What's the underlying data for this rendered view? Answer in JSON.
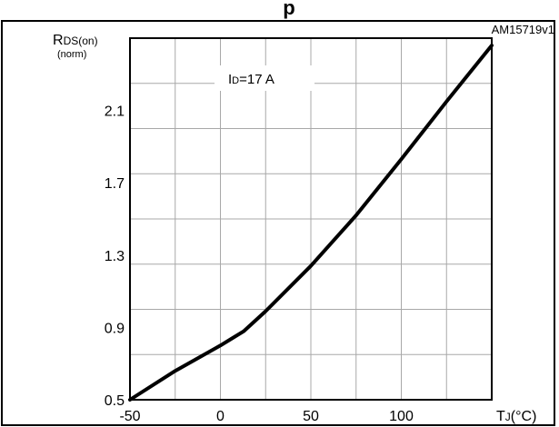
{
  "chart_data": {
    "type": "line",
    "title_partial": "p",
    "code": "AM15719v1",
    "annotation": "I",
    "annotation_sub": "D",
    "annotation_rest": "=17 A",
    "ylabel_main": "R",
    "ylabel_sub": "DS(on)",
    "ylabel_unit": "(norm)",
    "xlabel_main": "T",
    "xlabel_sub": "J",
    "xlabel_unit": "(°C)",
    "xlim": [
      -50,
      150
    ],
    "ylim": [
      0.5,
      2.5
    ],
    "xticks": [
      "-50",
      "0",
      "50",
      "100"
    ],
    "yticks": [
      "0.5",
      "0.9",
      "1.3",
      "1.7",
      "2.1"
    ],
    "grid": true,
    "series": [
      {
        "x": [
          -50,
          -25,
          0,
          13,
          25,
          50,
          75,
          100,
          125,
          150
        ],
        "y": [
          0.5,
          0.66,
          0.8,
          0.88,
          0.99,
          1.24,
          1.52,
          1.83,
          2.15,
          2.46
        ]
      }
    ]
  }
}
